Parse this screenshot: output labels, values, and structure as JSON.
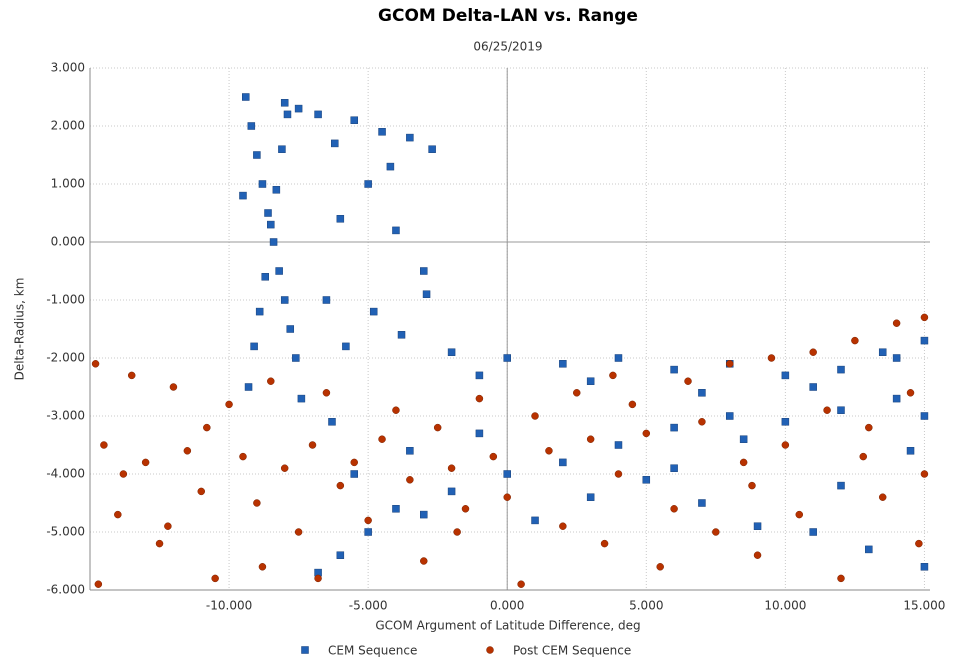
{
  "chart_data": {
    "type": "scatter",
    "title": "GCOM Delta-LAN vs. Range",
    "subtitle": "06/25/2019",
    "x_label": "GCOM Argument of Latitude Difference, deg",
    "y_label": "Delta-Radius, km",
    "xlim": [
      -15,
      15.2
    ],
    "ylim": [
      -6,
      3
    ],
    "xticks": [
      {
        "value": -10,
        "label": "-10.000"
      },
      {
        "value": -5,
        "label": "-5.000"
      },
      {
        "value": 0,
        "label": "0.000"
      },
      {
        "value": 5,
        "label": "5.000"
      },
      {
        "value": 10,
        "label": "10.000"
      },
      {
        "value": 15,
        "label": "15.000"
      }
    ],
    "yticks": [
      {
        "value": -6,
        "label": "-6.000"
      },
      {
        "value": -5,
        "label": "-5.000"
      },
      {
        "value": -4,
        "label": "-4.000"
      },
      {
        "value": -3,
        "label": "-3.000"
      },
      {
        "value": -2,
        "label": "-2.000"
      },
      {
        "value": -1,
        "label": "-1.000"
      },
      {
        "value": 0,
        "label": "0.000"
      },
      {
        "value": 1,
        "label": "1.000"
      },
      {
        "value": 2,
        "label": "2.000"
      },
      {
        "value": 3,
        "label": "3.000"
      }
    ],
    "grid": true,
    "series": [
      {
        "name": "CEM Sequence",
        "color": "#2161b5",
        "marker": "square",
        "x": [
          -9.4,
          -9.2,
          -9.0,
          -8.8,
          -8.6,
          -8.4,
          -8.2,
          -8.0,
          -7.8,
          -7.6,
          -9.3,
          -9.1,
          -8.9,
          -8.7,
          -8.5,
          -8.3,
          -8.1,
          -7.9,
          -7.5,
          -9.5,
          -7.4,
          -8.0,
          -6.8,
          -6.2,
          -5.5,
          -5.0,
          -4.5,
          -4.0,
          -3.5,
          -3.0,
          -2.7,
          -6.5,
          -5.8,
          -4.8,
          -3.8,
          -2.9,
          -6.0,
          -4.2,
          -2.0,
          0,
          2,
          4,
          6,
          8,
          10,
          12,
          14,
          15,
          -1.0,
          3,
          7,
          11,
          13.5,
          -6.8,
          -6,
          -5,
          -4,
          -3,
          -2,
          0,
          2,
          4,
          6,
          8,
          10,
          12,
          14,
          -5.5,
          -3.5,
          1,
          3,
          5,
          7,
          9,
          11,
          13,
          15,
          14.5,
          6,
          8.5,
          12,
          15,
          -6.3,
          -1
        ],
        "values": [
          2.5,
          2.0,
          1.5,
          1.0,
          0.5,
          0.0,
          -0.5,
          -1.0,
          -1.5,
          -2.0,
          -2.5,
          -1.8,
          -1.2,
          -0.6,
          0.3,
          0.9,
          1.6,
          2.2,
          2.3,
          0.8,
          -2.7,
          2.4,
          2.2,
          1.7,
          2.1,
          1.0,
          1.9,
          0.2,
          1.8,
          -0.5,
          1.6,
          -1.0,
          -1.8,
          -1.2,
          -1.6,
          -0.9,
          0.4,
          1.3,
          -1.9,
          -2.0,
          -2.1,
          -2.0,
          -2.2,
          -2.1,
          -2.3,
          -2.2,
          -2.0,
          -1.7,
          -2.3,
          -2.4,
          -2.6,
          -2.5,
          -1.9,
          -5.7,
          -5.4,
          -5.0,
          -4.6,
          -4.7,
          -4.3,
          -4.0,
          -3.8,
          -3.5,
          -3.2,
          -3.0,
          -3.1,
          -2.9,
          -2.7,
          -4.0,
          -3.6,
          -4.8,
          -4.4,
          -4.1,
          -4.5,
          -4.9,
          -5.0,
          -5.3,
          -5.6,
          -3.6,
          -3.9,
          -3.4,
          -4.2,
          -3.0,
          -3.1,
          -3.3
        ]
      },
      {
        "name": "Post CEM Sequence",
        "color": "#b83200",
        "marker": "circle",
        "x": [
          -14.8,
          -14.5,
          -14,
          -13.5,
          -13,
          -12.5,
          -12,
          -11.5,
          -11,
          -10.5,
          -10,
          -9.5,
          -9,
          -8.5,
          -8,
          -7.5,
          -7,
          -6.5,
          -6,
          -5.5,
          -5,
          -4.5,
          -4,
          -3.5,
          -3,
          -2.5,
          -2,
          -1.5,
          -1,
          -0.5,
          0,
          0.5,
          1,
          1.5,
          2,
          2.5,
          3,
          3.5,
          4,
          4.5,
          5,
          5.5,
          6,
          6.5,
          7,
          7.5,
          8,
          8.5,
          9,
          9.5,
          10,
          10.5,
          11,
          11.5,
          12,
          12.5,
          13,
          13.5,
          14,
          14.5,
          15,
          15,
          14.8,
          -14.7,
          -13.8,
          -12.2,
          -10.8,
          -8.8,
          -6.8,
          -1.8,
          3.8,
          8.8,
          12.8
        ],
        "values": [
          -2.1,
          -3.5,
          -4.7,
          -2.3,
          -3.8,
          -5.2,
          -2.5,
          -3.6,
          -4.3,
          -5.8,
          -2.8,
          -3.7,
          -4.5,
          -2.4,
          -3.9,
          -5.0,
          -3.5,
          -2.6,
          -4.2,
          -3.8,
          -4.8,
          -3.4,
          -2.9,
          -4.1,
          -5.5,
          -3.2,
          -3.9,
          -4.6,
          -2.7,
          -3.7,
          -4.4,
          -5.9,
          -3.0,
          -3.6,
          -4.9,
          -2.6,
          -3.4,
          -5.2,
          -4.0,
          -2.8,
          -3.3,
          -5.6,
          -4.6,
          -2.4,
          -3.1,
          -5.0,
          -2.1,
          -3.8,
          -5.4,
          -2.0,
          -3.5,
          -4.7,
          -1.9,
          -2.9,
          -5.8,
          -1.7,
          -3.2,
          -4.4,
          -1.4,
          -2.6,
          -1.3,
          -4.0,
          -5.2,
          -5.9,
          -4.0,
          -4.9,
          -3.2,
          -5.6,
          -5.8,
          -5.0,
          -2.3,
          -4.2,
          -3.7
        ]
      }
    ]
  }
}
